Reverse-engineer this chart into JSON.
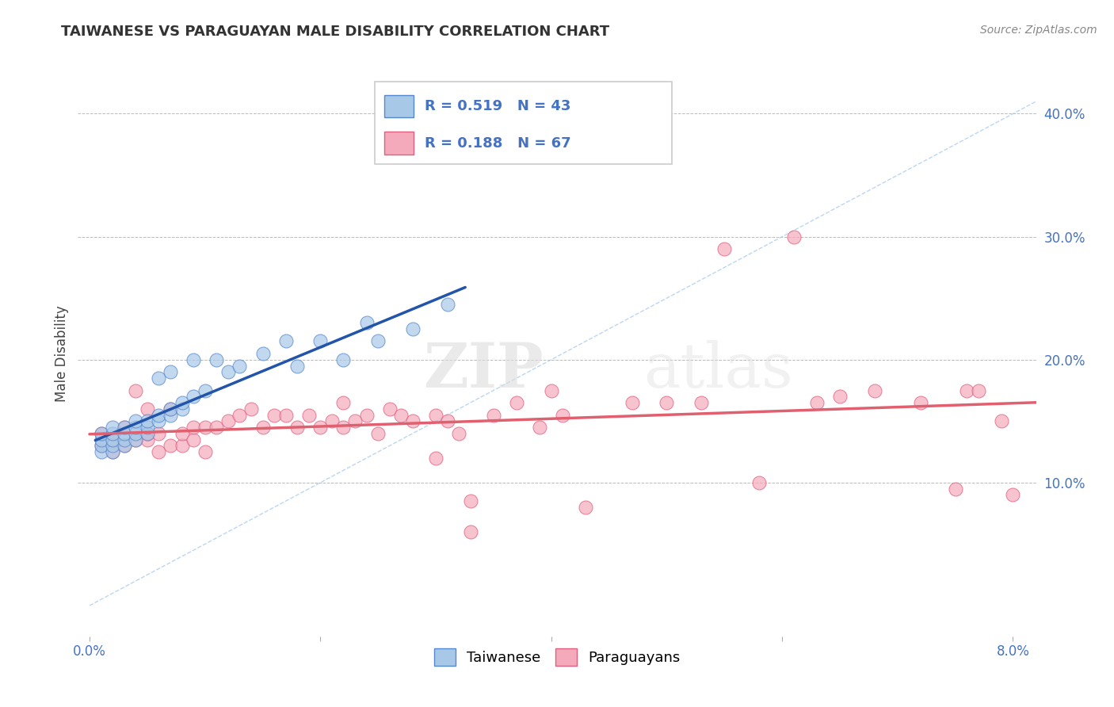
{
  "title": "TAIWANESE VS PARAGUAYAN MALE DISABILITY CORRELATION CHART",
  "source": "Source: ZipAtlas.com",
  "ylabel": "Male Disability",
  "xlim": [
    -0.001,
    0.082
  ],
  "ylim": [
    -0.025,
    0.435
  ],
  "color_taiwanese": "#A8C8E8",
  "color_taiwanese_edge": "#5588CC",
  "color_paraguayan": "#F4AABB",
  "color_paraguayan_edge": "#E06080",
  "color_line_taiwanese": "#2255AA",
  "color_line_paraguayan": "#E06070",
  "color_diagonal": "#AACCEE",
  "color_grid": "#BBBBBB",
  "color_title": "#333333",
  "color_axis_labels": "#4472C4",
  "background_color": "#FFFFFF",
  "r_taiwanese": 0.519,
  "n_taiwanese": 43,
  "r_paraguayan": 0.188,
  "n_paraguayan": 67,
  "legend_bottom": [
    "Taiwanese",
    "Paraguayans"
  ],
  "tw_x": [
    0.001,
    0.001,
    0.001,
    0.001,
    0.002,
    0.002,
    0.002,
    0.002,
    0.002,
    0.003,
    0.003,
    0.003,
    0.003,
    0.004,
    0.004,
    0.004,
    0.004,
    0.005,
    0.005,
    0.005,
    0.006,
    0.006,
    0.006,
    0.007,
    0.007,
    0.007,
    0.008,
    0.008,
    0.009,
    0.009,
    0.01,
    0.011,
    0.012,
    0.013,
    0.015,
    0.017,
    0.018,
    0.02,
    0.022,
    0.024,
    0.025,
    0.028,
    0.031
  ],
  "tw_y": [
    0.125,
    0.13,
    0.135,
    0.14,
    0.125,
    0.13,
    0.135,
    0.14,
    0.145,
    0.13,
    0.135,
    0.14,
    0.145,
    0.135,
    0.14,
    0.145,
    0.15,
    0.14,
    0.145,
    0.15,
    0.15,
    0.155,
    0.185,
    0.155,
    0.16,
    0.19,
    0.16,
    0.165,
    0.17,
    0.2,
    0.175,
    0.2,
    0.19,
    0.195,
    0.205,
    0.215,
    0.195,
    0.215,
    0.2,
    0.23,
    0.215,
    0.225,
    0.245
  ],
  "py_x": [
    0.001,
    0.001,
    0.002,
    0.002,
    0.003,
    0.003,
    0.004,
    0.004,
    0.005,
    0.005,
    0.005,
    0.006,
    0.006,
    0.007,
    0.007,
    0.008,
    0.008,
    0.009,
    0.009,
    0.01,
    0.01,
    0.011,
    0.012,
    0.013,
    0.014,
    0.015,
    0.016,
    0.017,
    0.018,
    0.019,
    0.02,
    0.021,
    0.022,
    0.022,
    0.023,
    0.024,
    0.025,
    0.026,
    0.027,
    0.028,
    0.03,
    0.03,
    0.031,
    0.032,
    0.033,
    0.035,
    0.037,
    0.039,
    0.041,
    0.043,
    0.047,
    0.05,
    0.053,
    0.055,
    0.058,
    0.061,
    0.065,
    0.068,
    0.072,
    0.075,
    0.076,
    0.077,
    0.079,
    0.08,
    0.04,
    0.063,
    0.033
  ],
  "py_y": [
    0.13,
    0.14,
    0.125,
    0.135,
    0.13,
    0.145,
    0.135,
    0.175,
    0.135,
    0.14,
    0.16,
    0.125,
    0.14,
    0.13,
    0.16,
    0.13,
    0.14,
    0.135,
    0.145,
    0.125,
    0.145,
    0.145,
    0.15,
    0.155,
    0.16,
    0.145,
    0.155,
    0.155,
    0.145,
    0.155,
    0.145,
    0.15,
    0.145,
    0.165,
    0.15,
    0.155,
    0.14,
    0.16,
    0.155,
    0.15,
    0.12,
    0.155,
    0.15,
    0.14,
    0.085,
    0.155,
    0.165,
    0.145,
    0.155,
    0.08,
    0.165,
    0.165,
    0.165,
    0.29,
    0.1,
    0.3,
    0.17,
    0.175,
    0.165,
    0.095,
    0.175,
    0.175,
    0.15,
    0.09,
    0.175,
    0.165,
    0.06
  ]
}
